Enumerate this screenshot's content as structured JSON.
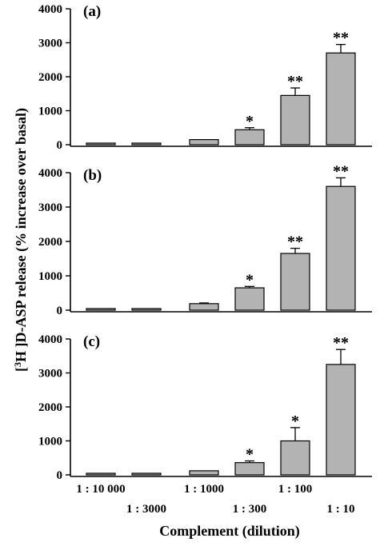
{
  "chart_data": {
    "type": "bar",
    "categories": [
      "1 : 10 000",
      "1 : 3000",
      "1 : 1000",
      "1 : 300",
      "1 : 100",
      "1 : 10"
    ],
    "xlabel": "Complement (dilution)",
    "ylabel_pre": "[",
    "ylabel_sup": "3",
    "ylabel_post": "H ]D-ASP release (% increase over basal)",
    "yticks": [
      0,
      1000,
      2000,
      3000,
      4000
    ],
    "ylim": [
      0,
      4000
    ],
    "bar_color": "#b3b3b3",
    "grid": false,
    "panels": [
      {
        "label": "(a)",
        "values": [
          40,
          40,
          150,
          440,
          1450,
          2700
        ],
        "errors": [
          0,
          0,
          0,
          60,
          220,
          250
        ],
        "significance": [
          "",
          "",
          "",
          "*",
          "**",
          "**"
        ]
      },
      {
        "label": "(b)",
        "values": [
          20,
          30,
          190,
          650,
          1650,
          3600
        ],
        "errors": [
          0,
          0,
          20,
          40,
          150,
          250
        ],
        "significance": [
          "",
          "",
          "",
          "*",
          "**",
          "**"
        ]
      },
      {
        "label": "(c)",
        "values": [
          20,
          30,
          120,
          360,
          1000,
          3250
        ],
        "errors": [
          0,
          0,
          0,
          50,
          390,
          440
        ],
        "significance": [
          "",
          "",
          "",
          "*",
          "*",
          "**"
        ]
      }
    ]
  }
}
